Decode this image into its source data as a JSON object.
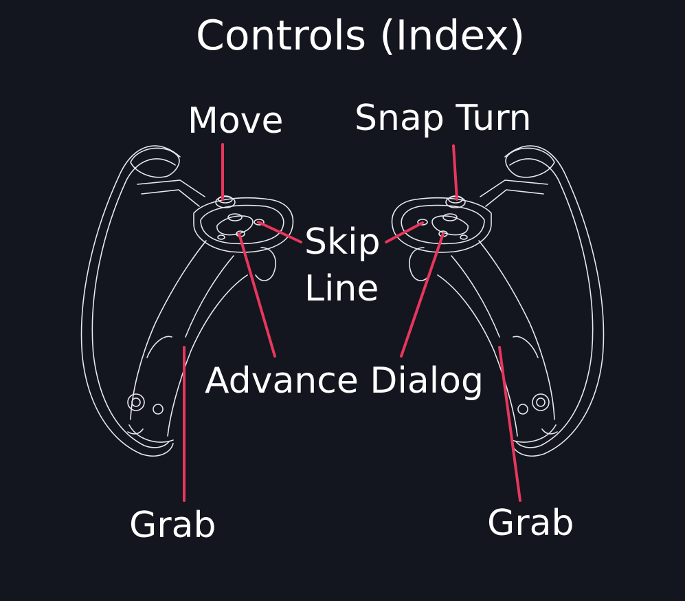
{
  "title": "Controls (Index)",
  "labels": {
    "move": "Move",
    "snap_turn": "Snap Turn",
    "skip_line_1": "Skip",
    "skip_line_2": "Line",
    "advance_dialog": "Advance Dialog",
    "grab_left": "Grab",
    "grab_right": "Grab"
  },
  "colors": {
    "background": "#13161e",
    "text": "#ffffff",
    "controller_outline": "#e6e8ec",
    "leader_line": "#e8365d"
  },
  "icons": [
    "left-index-controller",
    "right-index-controller"
  ]
}
